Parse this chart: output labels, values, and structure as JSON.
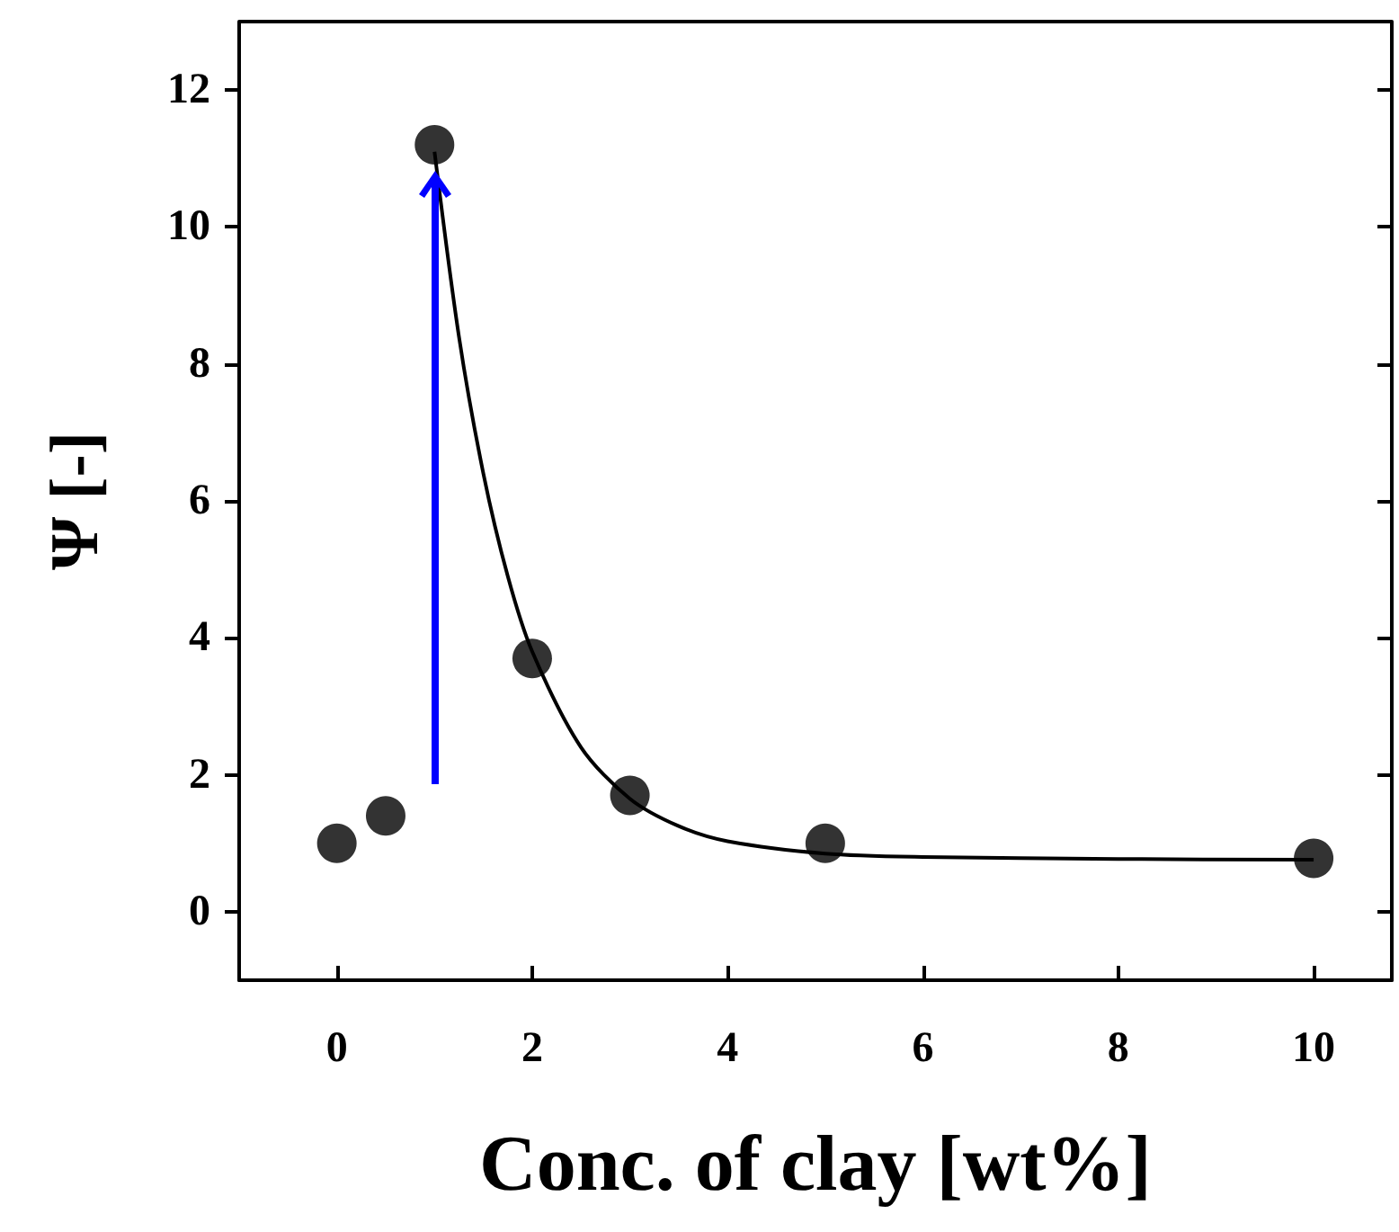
{
  "chart_data": {
    "type": "scatter",
    "xlabel": "Conc. of clay [wt%]",
    "ylabel": "Ψ [-]",
    "xlim": [
      -1,
      10.8
    ],
    "xticks": [
      0,
      2,
      4,
      6,
      8,
      10
    ],
    "ylim": [
      -1,
      13
    ],
    "yticks": [
      0,
      2,
      4,
      6,
      8,
      10,
      12
    ],
    "grid": false,
    "series": [
      {
        "color": "#000000",
        "marker": "circle",
        "x": [
          0,
          0.5,
          1,
          2,
          3,
          5,
          10
        ],
        "values": [
          1.0,
          1.4,
          11.2,
          3.7,
          1.7,
          1.0,
          0.78
        ]
      },
      {
        "type": "line",
        "color": "#000000",
        "marker": "none",
        "x": [
          1,
          1.25,
          1.5,
          1.75,
          2,
          2.5,
          3,
          3.5,
          4,
          5,
          6,
          8,
          10
        ],
        "values": [
          11.1,
          8.4,
          6.4,
          4.9,
          3.8,
          2.4,
          1.65,
          1.25,
          1.03,
          0.85,
          0.8,
          0.77,
          0.76
        ]
      }
    ]
  }
}
